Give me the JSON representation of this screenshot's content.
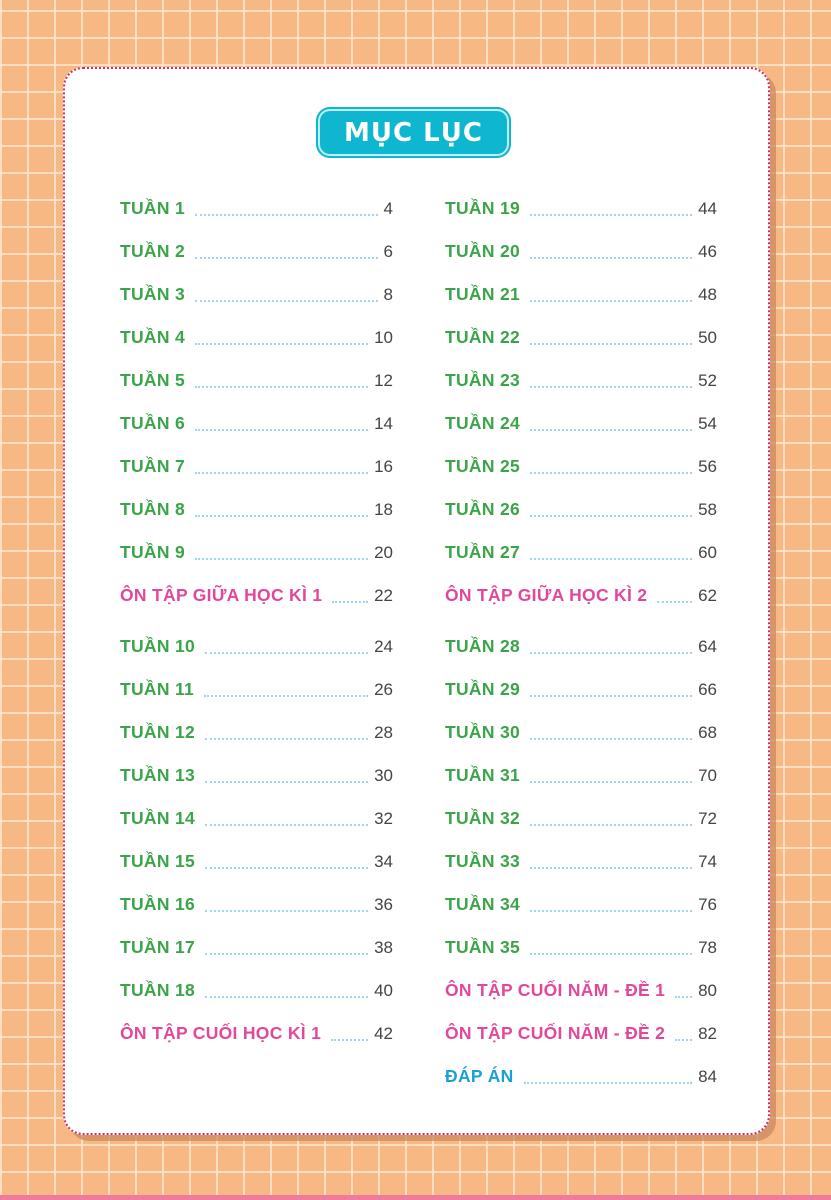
{
  "title": "MỤC LỤC",
  "colors": {
    "week": "#3aa548",
    "review": "#e2479a",
    "answers": "#1a9fd6",
    "badge": "#0eb7cf"
  },
  "left_column": [
    {
      "label": "TUẦN 1",
      "page": "4",
      "kind": "green"
    },
    {
      "label": "TUẦN 2",
      "page": "6",
      "kind": "green"
    },
    {
      "label": "TUẦN 3",
      "page": "8",
      "kind": "green"
    },
    {
      "label": "TUẦN 4",
      "page": "10",
      "kind": "green"
    },
    {
      "label": "TUẦN 5",
      "page": "12",
      "kind": "green"
    },
    {
      "label": "TUẦN 6",
      "page": "14",
      "kind": "green"
    },
    {
      "label": "TUẦN 7",
      "page": "16",
      "kind": "green"
    },
    {
      "label": "TUẦN 8",
      "page": "18",
      "kind": "green"
    },
    {
      "label": "TUẦN 9",
      "page": "20",
      "kind": "green"
    },
    {
      "label": "ÔN TẬP GIỮA HỌC KÌ 1",
      "page": "22",
      "kind": "pink"
    },
    {
      "label": "TUẦN 10",
      "page": "24",
      "kind": "green"
    },
    {
      "label": "TUẦN 11",
      "page": "26",
      "kind": "green"
    },
    {
      "label": "TUẦN 12",
      "page": "28",
      "kind": "green"
    },
    {
      "label": "TUẦN 13",
      "page": "30",
      "kind": "green"
    },
    {
      "label": "TUẦN 14",
      "page": "32",
      "kind": "green"
    },
    {
      "label": "TUẦN 15",
      "page": "34",
      "kind": "green"
    },
    {
      "label": "TUẦN 16",
      "page": "36",
      "kind": "green"
    },
    {
      "label": "TUẦN 17",
      "page": "38",
      "kind": "green"
    },
    {
      "label": "TUẦN 18",
      "page": "40",
      "kind": "green"
    },
    {
      "label": "ÔN TẬP CUỐI HỌC KÌ 1",
      "page": "42",
      "kind": "pink"
    }
  ],
  "right_column": [
    {
      "label": "TUẦN 19",
      "page": "44",
      "kind": "green"
    },
    {
      "label": "TUẦN 20",
      "page": "46",
      "kind": "green"
    },
    {
      "label": "TUẦN 21",
      "page": "48",
      "kind": "green"
    },
    {
      "label": "TUẦN 22",
      "page": "50",
      "kind": "green"
    },
    {
      "label": "TUẦN 23",
      "page": "52",
      "kind": "green"
    },
    {
      "label": "TUẦN 24",
      "page": "54",
      "kind": "green"
    },
    {
      "label": "TUẦN 25",
      "page": "56",
      "kind": "green"
    },
    {
      "label": "TUẦN 26",
      "page": "58",
      "kind": "green"
    },
    {
      "label": "TUẦN 27",
      "page": "60",
      "kind": "green"
    },
    {
      "label": "ÔN TẬP GIỮA HỌC KÌ 2",
      "page": "62",
      "kind": "pink"
    },
    {
      "label": "TUẦN 28",
      "page": "64",
      "kind": "green"
    },
    {
      "label": "TUẦN 29",
      "page": "66",
      "kind": "green"
    },
    {
      "label": "TUẦN 30",
      "page": "68",
      "kind": "green"
    },
    {
      "label": "TUẦN 31",
      "page": "70",
      "kind": "green"
    },
    {
      "label": "TUẦN 32",
      "page": "72",
      "kind": "green"
    },
    {
      "label": "TUẦN 33",
      "page": "74",
      "kind": "green"
    },
    {
      "label": "TUẦN 34",
      "page": "76",
      "kind": "green"
    },
    {
      "label": "TUẦN 35",
      "page": "78",
      "kind": "green"
    },
    {
      "label": "ÔN TẬP CUỐI NĂM - ĐỀ 1",
      "page": "80",
      "kind": "pink"
    },
    {
      "label": "ÔN TẬP CUỐI NĂM - ĐỀ 2",
      "page": "82",
      "kind": "pink"
    },
    {
      "label": "ĐÁP ÁN",
      "page": "84",
      "kind": "blue"
    }
  ]
}
